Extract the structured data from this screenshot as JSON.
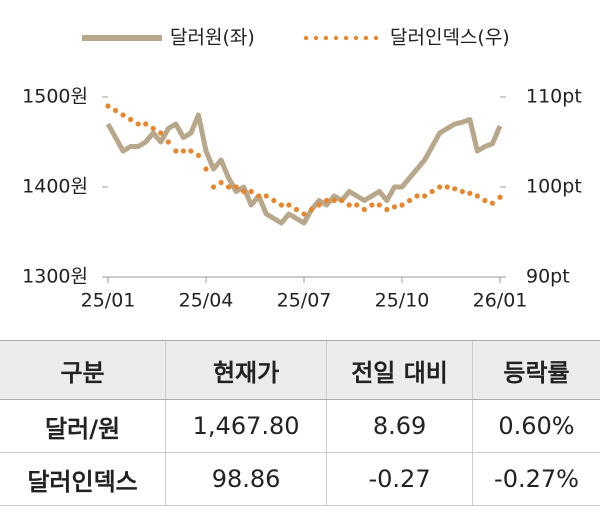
{
  "chart_data": {
    "type": "line",
    "categories": [
      "25/01",
      null,
      null,
      null,
      null,
      null,
      null,
      null,
      null,
      null,
      null,
      null,
      null,
      "25/04",
      null,
      null,
      null,
      null,
      null,
      null,
      null,
      null,
      null,
      null,
      null,
      null,
      "25/07",
      null,
      null,
      null,
      null,
      null,
      null,
      null,
      null,
      null,
      null,
      null,
      null,
      "25/10",
      null,
      null,
      null,
      null,
      null,
      null,
      null,
      null,
      null,
      null,
      null,
      null,
      "26/01"
    ],
    "series": [
      {
        "name": "달러원(좌)",
        "color": "#b7a78b",
        "values": [
          1470,
          1455,
          1440,
          1445,
          1445,
          1450,
          1460,
          1450,
          1465,
          1470,
          1455,
          1460,
          1480,
          1440,
          1420,
          1430,
          1410,
          1395,
          1400,
          1380,
          1390,
          1370,
          1365,
          1360,
          1370,
          1365,
          1360,
          1375,
          1385,
          1380,
          1390,
          1385,
          1395,
          1390,
          1385,
          1390,
          1395,
          1385,
          1400,
          1400,
          1410,
          1420,
          1430,
          1445,
          1460,
          1465,
          1470,
          1472,
          1475,
          1440,
          1445,
          1448,
          1467.8
        ]
      },
      {
        "name": "달러인덱스(우)",
        "color": "#e8862e",
        "axis": "y2",
        "values": [
          109,
          108.5,
          108,
          107.5,
          107,
          107,
          106.5,
          106,
          105,
          104,
          104,
          104,
          103.5,
          102,
          100,
          100.5,
          100,
          100,
          99.5,
          99.5,
          99,
          99,
          98.5,
          98,
          98,
          97.5,
          97,
          97.5,
          98,
          98.5,
          98.5,
          98.5,
          98,
          98,
          97.5,
          98,
          98,
          97.5,
          97.8,
          98,
          98.5,
          99,
          99,
          99.5,
          100,
          100,
          99.8,
          99.5,
          99.3,
          99,
          98.5,
          98.2,
          98.86
        ]
      }
    ],
    "ylim": [
      1300,
      1500
    ],
    "yticks": [
      {
        "value": 1300,
        "label": "1300원"
      },
      {
        "value": 1400,
        "label": "1400원"
      },
      {
        "value": 1500,
        "label": "1500원"
      }
    ],
    "y2lim": [
      90,
      110
    ],
    "y2ticks": [
      {
        "value": 90,
        "label": "90pt"
      },
      {
        "value": 100,
        "label": "100pt"
      },
      {
        "value": 110,
        "label": "110pt"
      }
    ]
  },
  "table": {
    "header": [
      "구분",
      "현재가",
      "전일 대비",
      "등락률"
    ],
    "rows": [
      [
        "달러/원",
        "1,467.80",
        "8.69",
        "0.60%"
      ],
      [
        "달러인덱스",
        "98.86",
        "-0.27",
        "-0.27%"
      ]
    ]
  }
}
